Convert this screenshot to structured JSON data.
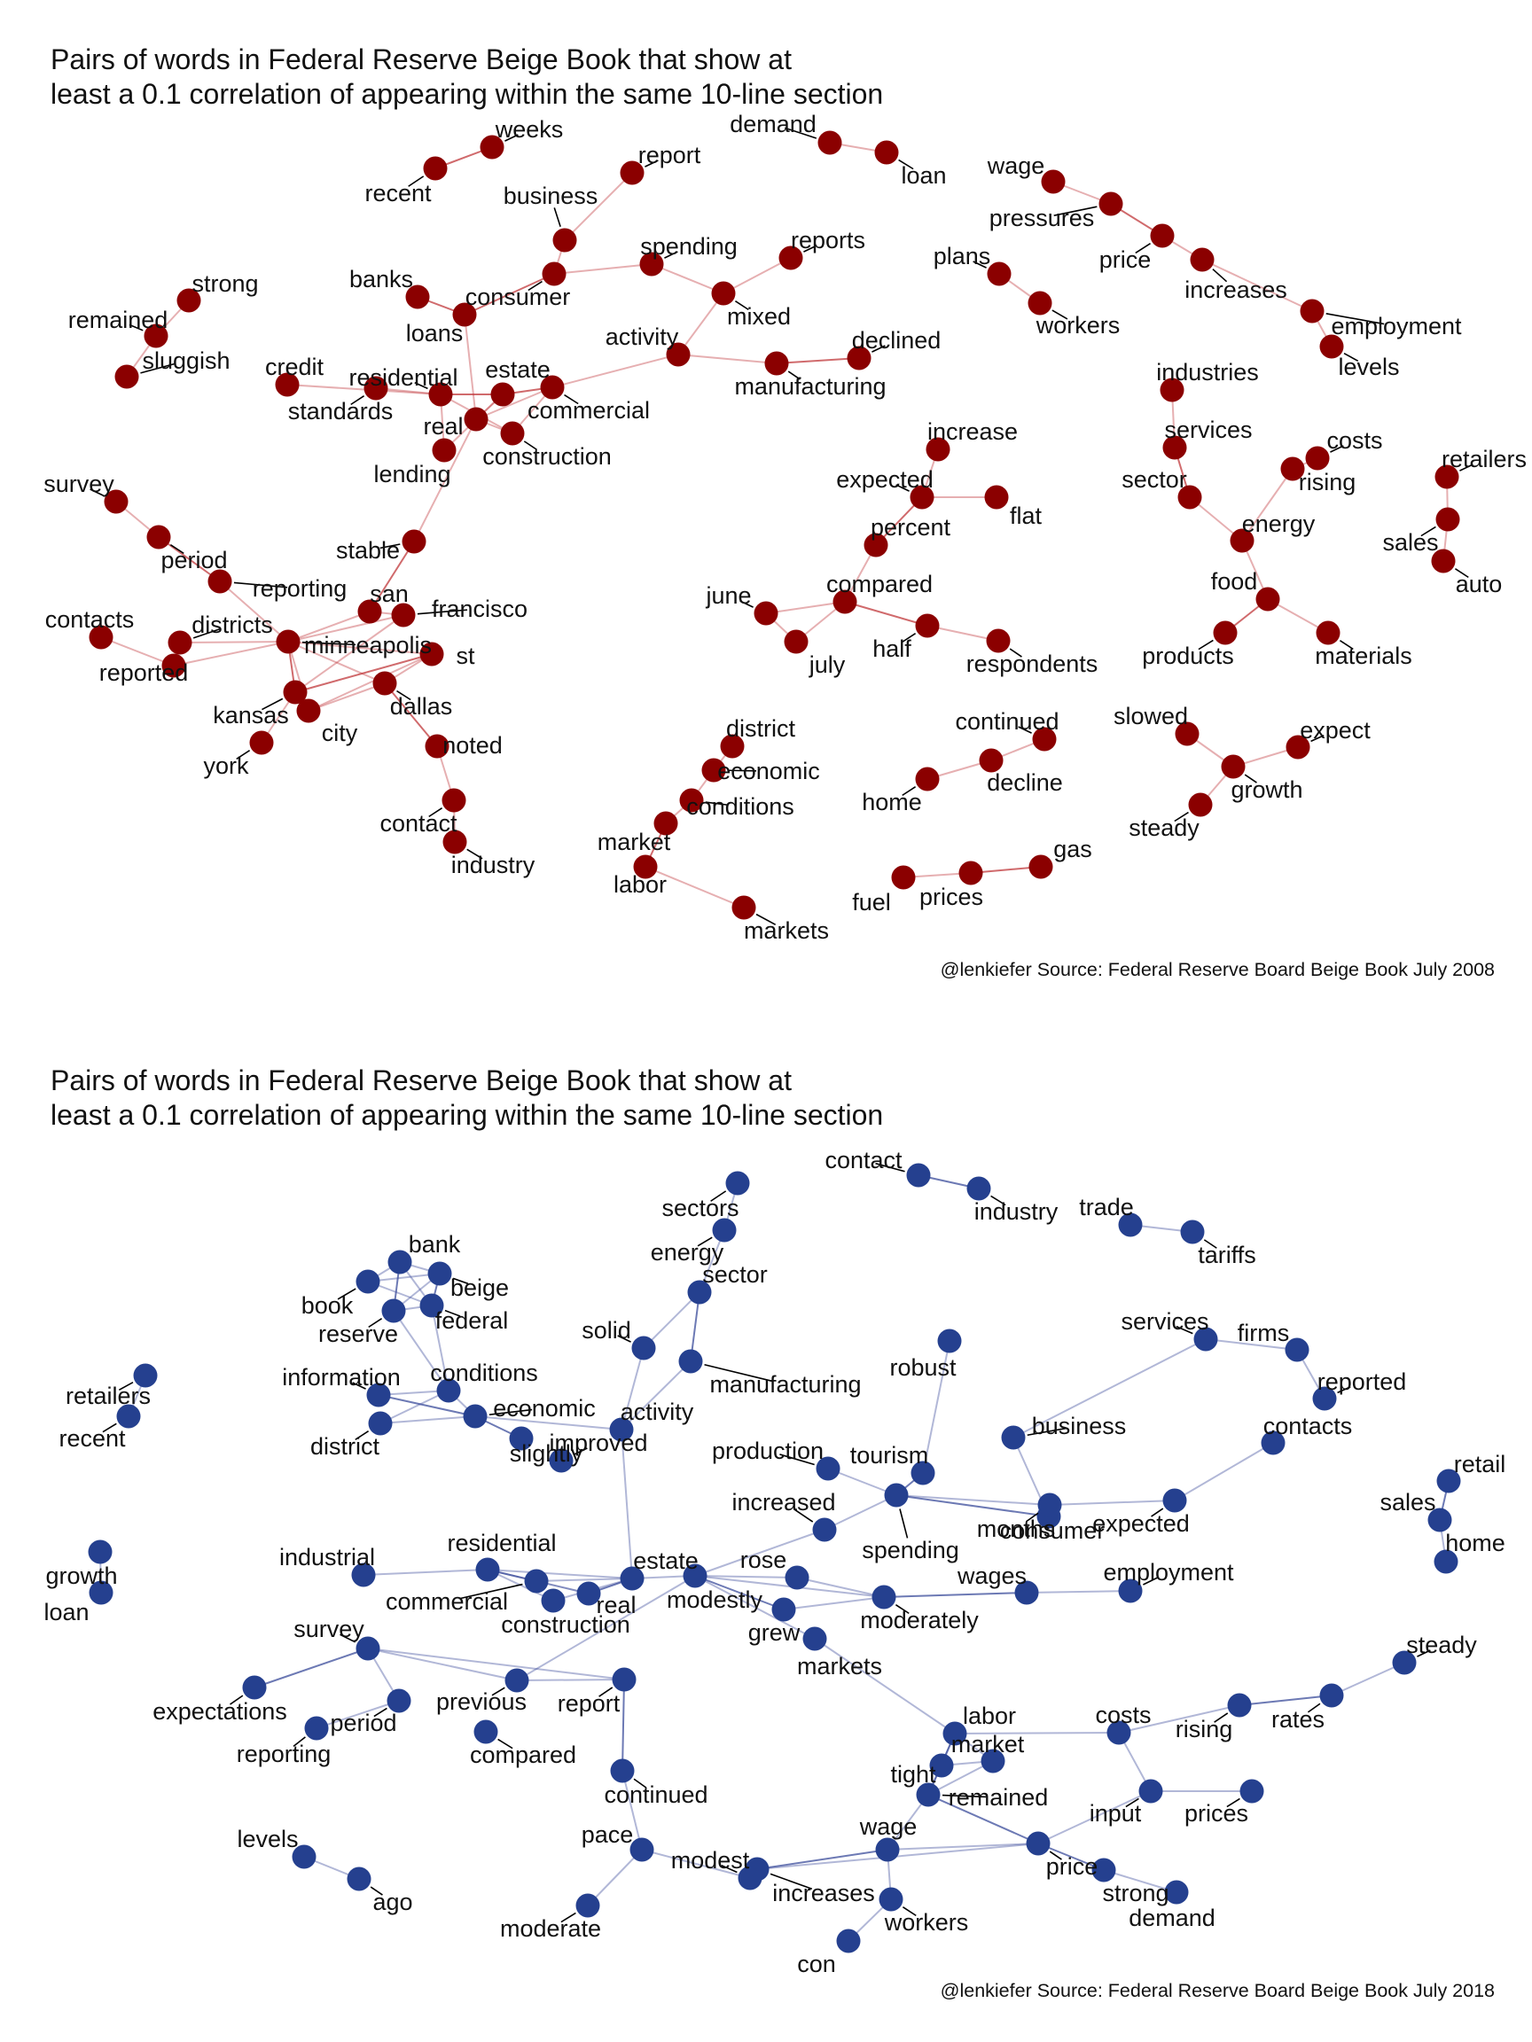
{
  "panels": [
    {
      "id": "2008",
      "title_line1": "Pairs of words in Federal Reserve Beige Book that show at",
      "title_line2": "least a 0.1 correlation of appearing within the same 10-line section",
      "caption": "@lenkiefer Source: Federal Reserve Board Beige Book July 2008",
      "node_color": "#8b0000",
      "edge_color": "#c0383b",
      "nodes": [
        "weeks",
        "recent",
        "business",
        "report",
        "demand",
        "loan",
        "wage",
        "pressures",
        "price",
        "increases",
        "employment",
        "levels",
        "spending",
        "reports",
        "consumer",
        "mixed",
        "plans",
        "workers",
        "strong",
        "remained",
        "sluggish",
        "banks",
        "loans",
        "activity",
        "declined",
        "manufacturing",
        "credit",
        "standards",
        "residential",
        "estate",
        "commercial",
        "real",
        "construction",
        "lending",
        "industries",
        "services",
        "costs",
        "retailers",
        "sector",
        "rising",
        "sales",
        "energy",
        "auto",
        "food",
        "products",
        "materials",
        "survey",
        "period",
        "reporting",
        "stable",
        "contacts",
        "districts",
        "reported",
        "minneapolis",
        "san",
        "francisco",
        "st",
        "kansas",
        "city",
        "york",
        "dallas",
        "noted",
        "contact",
        "industry",
        "increase",
        "expected",
        "flat",
        "percent",
        "compared",
        "june",
        "july",
        "half",
        "respondents",
        "district",
        "economic",
        "conditions",
        "market",
        "labor",
        "markets",
        "continued",
        "decline",
        "home",
        "fuel",
        "prices",
        "gas",
        "slowed",
        "expect",
        "growth",
        "steady"
      ],
      "edges": [
        [
          "recent",
          "weeks"
        ],
        [
          "business",
          "report"
        ],
        [
          "business",
          "consumer"
        ],
        [
          "demand",
          "loan"
        ],
        [
          "wage",
          "pressures"
        ],
        [
          "pressures",
          "price"
        ],
        [
          "price",
          "increases"
        ],
        [
          "increases",
          "employment"
        ],
        [
          "employment",
          "levels"
        ],
        [
          "consumer",
          "spending"
        ],
        [
          "consumer",
          "loans"
        ],
        [
          "spending",
          "mixed"
        ],
        [
          "reports",
          "mixed"
        ],
        [
          "mixed",
          "activity"
        ],
        [
          "activity",
          "manufacturing"
        ],
        [
          "manufacturing",
          "declined"
        ],
        [
          "activity",
          "commercial"
        ],
        [
          "plans",
          "workers"
        ],
        [
          "strong",
          "remained"
        ],
        [
          "remained",
          "sluggish"
        ],
        [
          "banks",
          "loans"
        ],
        [
          "loans",
          "real"
        ],
        [
          "credit",
          "residential"
        ],
        [
          "residential",
          "standards"
        ],
        [
          "residential",
          "lending"
        ],
        [
          "residential",
          "estate"
        ],
        [
          "residential",
          "construction"
        ],
        [
          "real",
          "estate"
        ],
        [
          "real",
          "commercial"
        ],
        [
          "real",
          "construction"
        ],
        [
          "estate",
          "commercial"
        ],
        [
          "estate",
          "lending"
        ],
        [
          "commercial",
          "construction"
        ],
        [
          "real",
          "stable"
        ],
        [
          "industries",
          "services"
        ],
        [
          "services",
          "sector"
        ],
        [
          "sector",
          "energy"
        ],
        [
          "energy",
          "rising"
        ],
        [
          "rising",
          "costs"
        ],
        [
          "energy",
          "food"
        ],
        [
          "food",
          "products"
        ],
        [
          "food",
          "materials"
        ],
        [
          "retailers",
          "sales"
        ],
        [
          "sales",
          "auto"
        ],
        [
          "survey",
          "period"
        ],
        [
          "period",
          "reporting"
        ],
        [
          "contacts",
          "reported"
        ],
        [
          "reported",
          "minneapolis"
        ],
        [
          "districts",
          "minneapolis"
        ],
        [
          "reporting",
          "minneapolis"
        ],
        [
          "stable",
          "san"
        ],
        [
          "san",
          "francisco"
        ],
        [
          "san",
          "minneapolis"
        ],
        [
          "francisco",
          "minneapolis"
        ],
        [
          "minneapolis",
          "st"
        ],
        [
          "minneapolis",
          "kansas"
        ],
        [
          "minneapolis",
          "city"
        ],
        [
          "minneapolis",
          "dallas"
        ],
        [
          "kansas",
          "city"
        ],
        [
          "kansas",
          "york"
        ],
        [
          "kansas",
          "st"
        ],
        [
          "city",
          "st"
        ],
        [
          "city",
          "dallas"
        ],
        [
          "st",
          "dallas"
        ],
        [
          "francisco",
          "kansas"
        ],
        [
          "dallas",
          "noted"
        ],
        [
          "noted",
          "contact"
        ],
        [
          "contact",
          "industry"
        ],
        [
          "increase",
          "expected"
        ],
        [
          "expected",
          "flat"
        ],
        [
          "expected",
          "percent"
        ],
        [
          "percent",
          "compared"
        ],
        [
          "compared",
          "june"
        ],
        [
          "compared",
          "july"
        ],
        [
          "june",
          "july"
        ],
        [
          "compared",
          "half"
        ],
        [
          "half",
          "respondents"
        ],
        [
          "district",
          "economic"
        ],
        [
          "economic",
          "conditions"
        ],
        [
          "conditions",
          "market"
        ],
        [
          "market",
          "labor"
        ],
        [
          "labor",
          "markets"
        ],
        [
          "continued",
          "decline"
        ],
        [
          "decline",
          "home"
        ],
        [
          "fuel",
          "prices"
        ],
        [
          "prices",
          "gas"
        ],
        [
          "slowed",
          "growth"
        ],
        [
          "expect",
          "growth"
        ],
        [
          "growth",
          "steady"
        ]
      ]
    },
    {
      "id": "2018",
      "title_line1": "Pairs of words in Federal Reserve Beige Book that show at",
      "title_line2": "least a 0.1 correlation of appearing within the same 10-line section",
      "caption": "@lenkiefer Source: Federal Reserve Board Beige Book July 2018",
      "node_color": "#25408f",
      "edge_color": "#3b4c9b",
      "nodes": [
        "contact",
        "industry",
        "trade",
        "tariffs",
        "sectors",
        "energy",
        "sector",
        "bank",
        "book",
        "beige",
        "reserve",
        "federal",
        "solid",
        "manufacturing",
        "robust",
        "services",
        "firms",
        "reported",
        "retailers",
        "recent",
        "information",
        "conditions",
        "economic",
        "district",
        "activity",
        "business",
        "contacts",
        "slightly",
        "improved",
        "production",
        "tourism",
        "consumer",
        "spending",
        "increased",
        "months",
        "expected",
        "retail",
        "sales",
        "home",
        "growth",
        "loan",
        "industrial",
        "residential",
        "commercial",
        "estate",
        "real",
        "construction",
        "rose",
        "modestly",
        "grew",
        "moderately",
        "wages",
        "employment",
        "markets",
        "survey",
        "previous",
        "report",
        "expectations",
        "period",
        "reporting",
        "compared",
        "labor",
        "costs",
        "rising",
        "rates",
        "steady",
        "tight",
        "market",
        "remained",
        "input",
        "prices",
        "continued",
        "pace",
        "modest",
        "increases",
        "wage",
        "price",
        "strong",
        "demand",
        "levels",
        "ago",
        "moderate",
        "workers",
        "con"
      ],
      "edges": [
        [
          "contact",
          "industry"
        ],
        [
          "trade",
          "tariffs"
        ],
        [
          "sectors",
          "energy"
        ],
        [
          "energy",
          "sector"
        ],
        [
          "sector",
          "solid"
        ],
        [
          "sector",
          "manufacturing"
        ],
        [
          "manufacturing",
          "activity"
        ],
        [
          "solid",
          "activity"
        ],
        [
          "bank",
          "book"
        ],
        [
          "bank",
          "beige"
        ],
        [
          "bank",
          "reserve"
        ],
        [
          "bank",
          "federal"
        ],
        [
          "book",
          "beige"
        ],
        [
          "book",
          "federal"
        ],
        [
          "beige",
          "reserve"
        ],
        [
          "beige",
          "federal"
        ],
        [
          "reserve",
          "federal"
        ],
        [
          "federal",
          "conditions"
        ],
        [
          "reserve",
          "conditions"
        ],
        [
          "information",
          "conditions"
        ],
        [
          "information",
          "economic"
        ],
        [
          "district",
          "conditions"
        ],
        [
          "district",
          "economic"
        ],
        [
          "conditions",
          "economic"
        ],
        [
          "economic",
          "activity"
        ],
        [
          "economic",
          "slightly"
        ],
        [
          "services",
          "firms"
        ],
        [
          "firms",
          "reported"
        ],
        [
          "business",
          "consumer"
        ],
        [
          "business",
          "services"
        ],
        [
          "consumer",
          "spending"
        ],
        [
          "spending",
          "months"
        ],
        [
          "months",
          "expected"
        ],
        [
          "expected",
          "contacts"
        ],
        [
          "robust",
          "tourism"
        ],
        [
          "tourism",
          "spending"
        ],
        [
          "production",
          "spending"
        ],
        [
          "spending",
          "increased"
        ],
        [
          "increased",
          "modestly"
        ],
        [
          "retailers",
          "recent"
        ],
        [
          "retail",
          "sales"
        ],
        [
          "sales",
          "home"
        ],
        [
          "growth",
          "loan"
        ],
        [
          "industrial",
          "residential"
        ],
        [
          "residential",
          "estate"
        ],
        [
          "residential",
          "commercial"
        ],
        [
          "residential",
          "construction"
        ],
        [
          "residential",
          "real"
        ],
        [
          "commercial",
          "estate"
        ],
        [
          "commercial",
          "real"
        ],
        [
          "estate",
          "real"
        ],
        [
          "estate",
          "construction"
        ],
        [
          "estate",
          "modestly"
        ],
        [
          "estate",
          "activity"
        ],
        [
          "modestly",
          "rose"
        ],
        [
          "modestly",
          "grew"
        ],
        [
          "modestly",
          "moderately"
        ],
        [
          "modestly",
          "previous"
        ],
        [
          "rose",
          "moderately"
        ],
        [
          "grew",
          "moderately"
        ],
        [
          "moderately",
          "wages"
        ],
        [
          "wages",
          "employment"
        ],
        [
          "modestly",
          "markets"
        ],
        [
          "markets",
          "labor"
        ],
        [
          "survey",
          "previous"
        ],
        [
          "survey",
          "expectations"
        ],
        [
          "survey",
          "period"
        ],
        [
          "survey",
          "report"
        ],
        [
          "period",
          "reporting"
        ],
        [
          "previous",
          "report"
        ],
        [
          "report",
          "continued"
        ],
        [
          "continued",
          "pace"
        ],
        [
          "pace",
          "modest"
        ],
        [
          "pace",
          "moderate"
        ],
        [
          "modest",
          "increases"
        ],
        [
          "increases",
          "wage"
        ],
        [
          "increases",
          "price"
        ],
        [
          "labor",
          "costs"
        ],
        [
          "labor",
          "tight"
        ],
        [
          "labor",
          "market"
        ],
        [
          "labor",
          "remained"
        ],
        [
          "tight",
          "market"
        ],
        [
          "tight",
          "remained"
        ],
        [
          "market",
          "remained"
        ],
        [
          "costs",
          "rising"
        ],
        [
          "rising",
          "rates"
        ],
        [
          "rates",
          "steady"
        ],
        [
          "costs",
          "input"
        ],
        [
          "input",
          "prices"
        ],
        [
          "input",
          "price"
        ],
        [
          "remained",
          "price"
        ],
        [
          "wage",
          "price"
        ],
        [
          "wage",
          "workers"
        ],
        [
          "wage",
          "remained"
        ],
        [
          "workers",
          "con"
        ],
        [
          "price",
          "strong"
        ],
        [
          "strong",
          "demand"
        ],
        [
          "levels",
          "ago"
        ]
      ]
    }
  ]
}
